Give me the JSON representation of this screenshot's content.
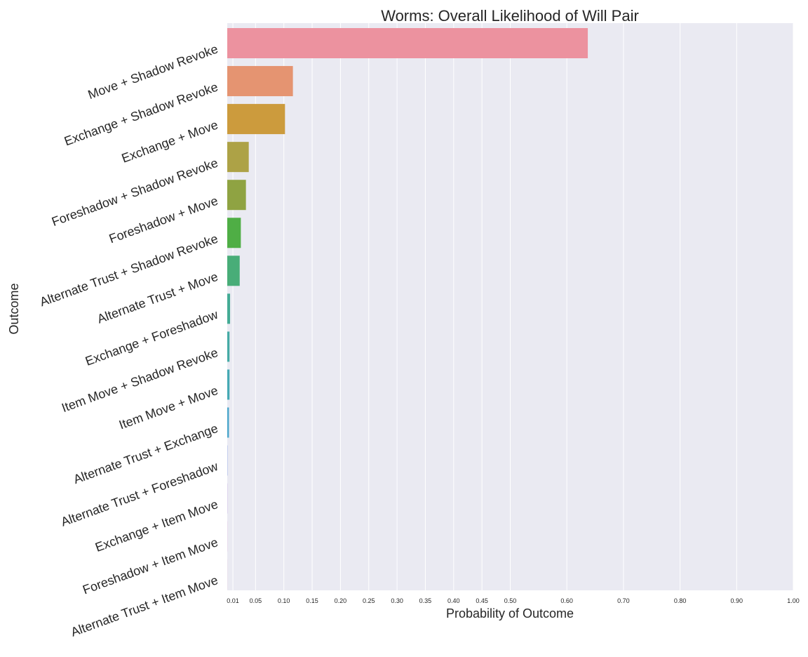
{
  "chart_data": {
    "type": "bar",
    "orientation": "horizontal",
    "title": "Worms: Overall Likelihood of Will Pair",
    "xlabel": "Probability of Outcome",
    "ylabel": "Outcome",
    "xlim": [
      0,
      1.0
    ],
    "x_ticks": [
      0.01,
      0.05,
      0.1,
      0.15,
      0.2,
      0.25,
      0.3,
      0.35,
      0.4,
      0.45,
      0.5,
      0.6,
      0.7,
      0.8,
      0.9,
      1.0
    ],
    "x_tick_labels": [
      "0.01",
      "0.05",
      "0.10",
      "0.15",
      "0.20",
      "0.25",
      "0.30",
      "0.35",
      "0.40",
      "0.45",
      "0.50",
      "0.60",
      "0.70",
      "0.80",
      "0.90",
      "1.00"
    ],
    "grid": true,
    "legend": "none",
    "background": "#eaeaf2",
    "categories": [
      "Move + Shadow Revoke",
      "Exchange + Shadow Revoke",
      "Exchange + Move",
      "Foreshadow + Shadow Revoke",
      "Foreshadow + Move",
      "Alternate Trust + Shadow Revoke",
      "Alternate Trust + Move",
      "Exchange + Foreshadow",
      "Item Move + Shadow Revoke",
      "Item Move + Move",
      "Alternate Trust + Exchange",
      "Alternate Trust + Foreshadow",
      "Exchange + Item Move",
      "Foreshadow + Item Move",
      "Alternate Trust + Item Move"
    ],
    "values": [
      0.637,
      0.116,
      0.102,
      0.038,
      0.033,
      0.024,
      0.022,
      0.005,
      0.004,
      0.004,
      0.003,
      0.0005,
      0.0003,
      0.0002,
      0.0001
    ],
    "colors": [
      "#ec929f",
      "#e59471",
      "#cc9b3d",
      "#ada246",
      "#8fa342",
      "#4fae45",
      "#48ad78",
      "#44ab95",
      "#45aaa5",
      "#46a9b4",
      "#4ba6cb",
      "#8fa6e8",
      "#b695e4",
      "#d98fde",
      "#ea8dc6"
    ]
  }
}
